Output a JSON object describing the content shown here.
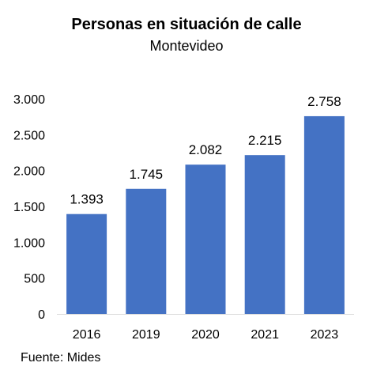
{
  "chart_data": {
    "type": "bar",
    "title": "Personas en situación de calle",
    "subtitle": "Montevideo",
    "categories": [
      "2016",
      "2019",
      "2020",
      "2021",
      "2023"
    ],
    "values": [
      1393,
      1745,
      2082,
      2215,
      2758
    ],
    "data_labels": [
      "1.393",
      "1.745",
      "2.082",
      "2.215",
      "2.758"
    ],
    "y_ticks": [
      0,
      500,
      1000,
      1500,
      2000,
      2500,
      3000
    ],
    "y_tick_labels": [
      "0",
      "500",
      "1.000",
      "1.500",
      "2.000",
      "2.500",
      "3.000"
    ],
    "ylim": [
      0,
      3000
    ],
    "xlabel": "",
    "ylabel": "",
    "grid": false,
    "legend": "none",
    "bar_color": "#4472C4"
  },
  "source": "Fuente: Mides"
}
